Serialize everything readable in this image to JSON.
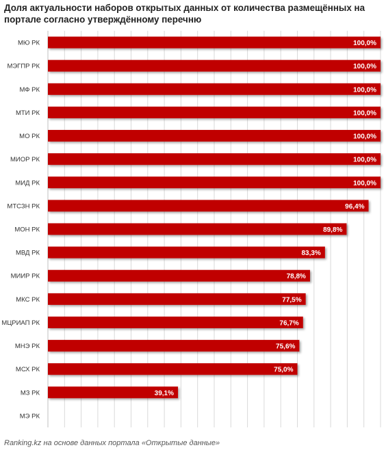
{
  "chart_data": {
    "type": "bar",
    "orientation": "horizontal",
    "title_lines": [
      "Доля актуальности наборов открытых данных от количества размещённых на",
      "портале согласно утверждённому перечню"
    ],
    "categories": [
      "МЮ РК",
      "МЭГПР РК",
      "МФ РК",
      "МТИ РК",
      "МО РК",
      "МИОР РК",
      "МИД РК",
      "МТСЗН РК",
      "МОН РК",
      "МВД РК",
      "МИИР РК",
      "МКС РК",
      "МЦРИАП РК",
      "МНЭ РК",
      "МСХ РК",
      "МЗ РК",
      "МЭ РК"
    ],
    "values": [
      100.0,
      100.0,
      100.0,
      100.0,
      100.0,
      100.0,
      100.0,
      96.4,
      89.8,
      83.3,
      78.8,
      77.5,
      76.7,
      75.6,
      75.0,
      39.1,
      0
    ],
    "value_labels": [
      "100,0%",
      "100,0%",
      "100,0%",
      "100,0%",
      "100,0%",
      "100,0%",
      "100,0%",
      "96,4%",
      "89,8%",
      "83,3%",
      "78,8%",
      "77,5%",
      "76,7%",
      "75,6%",
      "75,0%",
      "39,1%",
      ""
    ],
    "xlim": [
      0,
      100
    ],
    "bar_color": "#c00000",
    "grid": "vertical",
    "legend": "none"
  },
  "source_note": "Ranking.kz на основе данных портала «Открытые данные»"
}
